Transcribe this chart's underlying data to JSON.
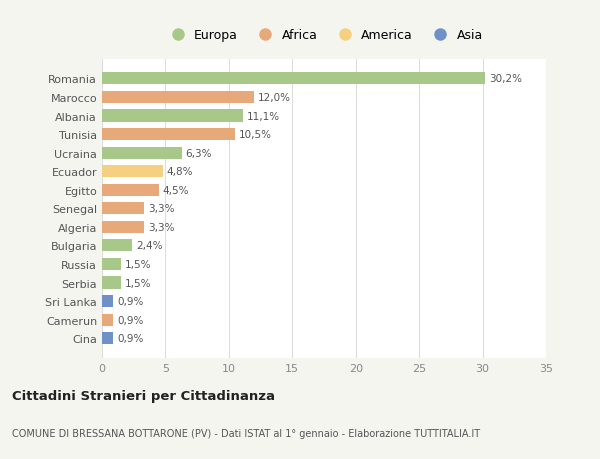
{
  "categories": [
    "Romania",
    "Marocco",
    "Albania",
    "Tunisia",
    "Ucraina",
    "Ecuador",
    "Egitto",
    "Senegal",
    "Algeria",
    "Bulgaria",
    "Russia",
    "Serbia",
    "Sri Lanka",
    "Camerun",
    "Cina"
  ],
  "values": [
    30.2,
    12.0,
    11.1,
    10.5,
    6.3,
    4.8,
    4.5,
    3.3,
    3.3,
    2.4,
    1.5,
    1.5,
    0.9,
    0.9,
    0.9
  ],
  "labels": [
    "30,2%",
    "12,0%",
    "11,1%",
    "10,5%",
    "6,3%",
    "4,8%",
    "4,5%",
    "3,3%",
    "3,3%",
    "2,4%",
    "1,5%",
    "1,5%",
    "0,9%",
    "0,9%",
    "0,9%"
  ],
  "colors": [
    "#a8c88a",
    "#e8a97a",
    "#a8c88a",
    "#e8a97a",
    "#a8c88a",
    "#f5d080",
    "#e8a97a",
    "#e8a97a",
    "#e8a97a",
    "#a8c88a",
    "#a8c88a",
    "#a8c88a",
    "#7090c8",
    "#e8a97a",
    "#7090c8"
  ],
  "legend_labels": [
    "Europa",
    "Africa",
    "America",
    "Asia"
  ],
  "legend_colors": [
    "#a8c88a",
    "#e8a97a",
    "#f5d080",
    "#7090c8"
  ],
  "title": "Cittadini Stranieri per Cittadinanza",
  "subtitle": "COMUNE DI BRESSANA BOTTARONE (PV) - Dati ISTAT al 1° gennaio - Elaborazione TUTTITALIA.IT",
  "xlim": [
    0,
    35
  ],
  "xticks": [
    0,
    5,
    10,
    15,
    20,
    25,
    30,
    35
  ],
  "bg_color": "#f5f5f0",
  "plot_bg_color": "#ffffff"
}
